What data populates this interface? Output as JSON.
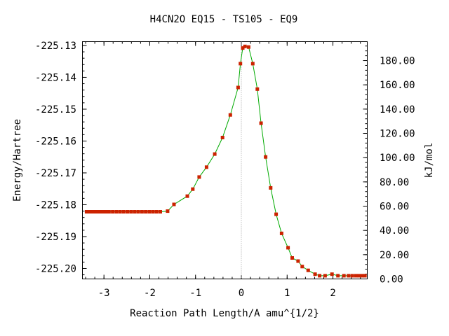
{
  "chart_data": {
    "type": "scatter",
    "title": "H4CN2O   EQ15 - TS105 - EQ9",
    "xlabel": "Reaction Path Length/A amu^{1/2}",
    "ylabel": "Energy/Hartree",
    "y2label": "kJ/mol",
    "xlim": [
      -3.47,
      2.75
    ],
    "ylim": [
      -225.2033,
      -225.1288
    ],
    "y2lim": [
      0.0,
      195.6
    ],
    "x_ticks": [
      -3,
      -2,
      -1,
      0,
      1,
      2
    ],
    "x_tick_labels": [
      "-3",
      "-2",
      "-1",
      "0",
      "1",
      "2"
    ],
    "y_ticks": [
      -225.13,
      -225.14,
      -225.15,
      -225.16,
      -225.17,
      -225.18,
      -225.19,
      -225.2
    ],
    "y_tick_labels": [
      "-225.13",
      "-225.14",
      "-225.15",
      "-225.16",
      "-225.17",
      "-225.18",
      "-225.19",
      "-225.20"
    ],
    "y2_ticks": [
      0,
      20,
      40,
      60,
      80,
      100,
      120,
      140,
      160,
      180
    ],
    "y2_tick_labels": [
      "0.00",
      "20.00",
      "40.00",
      "60.00",
      "80.00",
      "100.00",
      "120.00",
      "140.00",
      "160.00",
      "180.00"
    ],
    "transition_state_x": 0.0,
    "grid": false,
    "colors": {
      "points": "#cc2200",
      "curve": "#00aa00",
      "ts_line": "#999999"
    },
    "series": [
      {
        "x": [
          -3.38,
          -3.33,
          -3.27,
          -3.21,
          -3.15,
          -3.09,
          -3.03,
          -2.96,
          -2.89,
          -2.81,
          -2.73,
          -2.65,
          -2.57,
          -2.49,
          -2.41,
          -2.33,
          -2.25,
          -2.17,
          -2.09,
          -2.01,
          -1.93,
          -1.85,
          -1.77,
          -1.61,
          -1.47,
          -1.18,
          -1.06,
          -0.92,
          -0.76,
          -0.58,
          -0.41,
          -0.24,
          -0.07,
          -0.02,
          0.03,
          0.08,
          0.16,
          0.25,
          0.35,
          0.43,
          0.53,
          0.64,
          0.76,
          0.88,
          1.02,
          1.11,
          1.24,
          1.33,
          1.46,
          1.61,
          1.71,
          1.83,
          1.98,
          2.11,
          2.24,
          2.34,
          2.42,
          2.5,
          2.57,
          2.64,
          2.7
        ],
        "y": [
          -225.1822,
          -225.1822,
          -225.1822,
          -225.1822,
          -225.1822,
          -225.1822,
          -225.1822,
          -225.1822,
          -225.1822,
          -225.1822,
          -225.1822,
          -225.1822,
          -225.1822,
          -225.1822,
          -225.1822,
          -225.1822,
          -225.1822,
          -225.1822,
          -225.1822,
          -225.1822,
          -225.1822,
          -225.1822,
          -225.1822,
          -225.182,
          -225.1799,
          -225.1773,
          -225.1751,
          -225.1713,
          -225.1682,
          -225.1641,
          -225.1589,
          -225.1518,
          -225.1432,
          -225.1357,
          -225.1308,
          -225.1303,
          -225.1305,
          -225.1357,
          -225.1437,
          -225.1544,
          -225.165,
          -225.1747,
          -225.183,
          -225.189,
          -225.1935,
          -225.1967,
          -225.1977,
          -225.1994,
          -225.2006,
          -225.2018,
          -225.2023,
          -225.2023,
          -225.2018,
          -225.2023,
          -225.2023,
          -225.2023,
          -225.2023,
          -225.2023,
          -225.2023,
          -225.2023,
          -225.2023
        ]
      }
    ]
  }
}
